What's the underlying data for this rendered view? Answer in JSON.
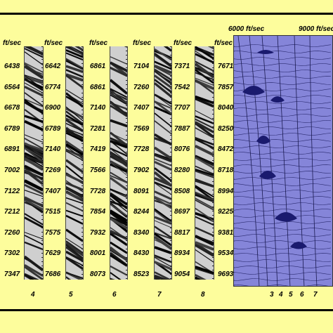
{
  "unit_label": "ft/sec",
  "columns": [
    {
      "velocities": [
        "6438",
        "6564",
        "6678",
        "6789",
        "6891",
        "7002",
        "7122",
        "7212",
        "7260",
        "7302",
        "7347"
      ],
      "strip_label": "4"
    },
    {
      "velocities": [
        "6642",
        "6774",
        "6900",
        "6789",
        "7140",
        "7269",
        "7407",
        "7515",
        "7575",
        "7629",
        "7686"
      ],
      "strip_label": "5"
    },
    {
      "velocities": [
        "6861",
        "6861",
        "7140",
        "7281",
        "7419",
        "7566",
        "7728",
        "7854",
        "7932",
        "8001",
        "8073"
      ],
      "strip_label": "6"
    },
    {
      "velocities": [
        "7104",
        "7260",
        "7407",
        "7569",
        "7728",
        "7902",
        "8091",
        "8244",
        "8340",
        "8430",
        "8523"
      ],
      "strip_label": "7"
    },
    {
      "velocities": [
        "7371",
        "7542",
        "7707",
        "7887",
        "8076",
        "8280",
        "8508",
        "8697",
        "8817",
        "8934",
        "9054"
      ],
      "strip_label": "8"
    },
    {
      "velocities": [
        "7671",
        "7857",
        "8040",
        "8250",
        "8472",
        "8718",
        "8994",
        "9225",
        "9381",
        "9534",
        "9693"
      ],
      "strip_label": ""
    }
  ],
  "semblance": {
    "left_header": "6000 ft/sec",
    "right_header": "9000 ft/sec",
    "curve_labels": [
      "3",
      "4",
      "5",
      "6",
      "7"
    ],
    "panel_color": "#8585d9",
    "peak_color": "#1a1a6e"
  }
}
